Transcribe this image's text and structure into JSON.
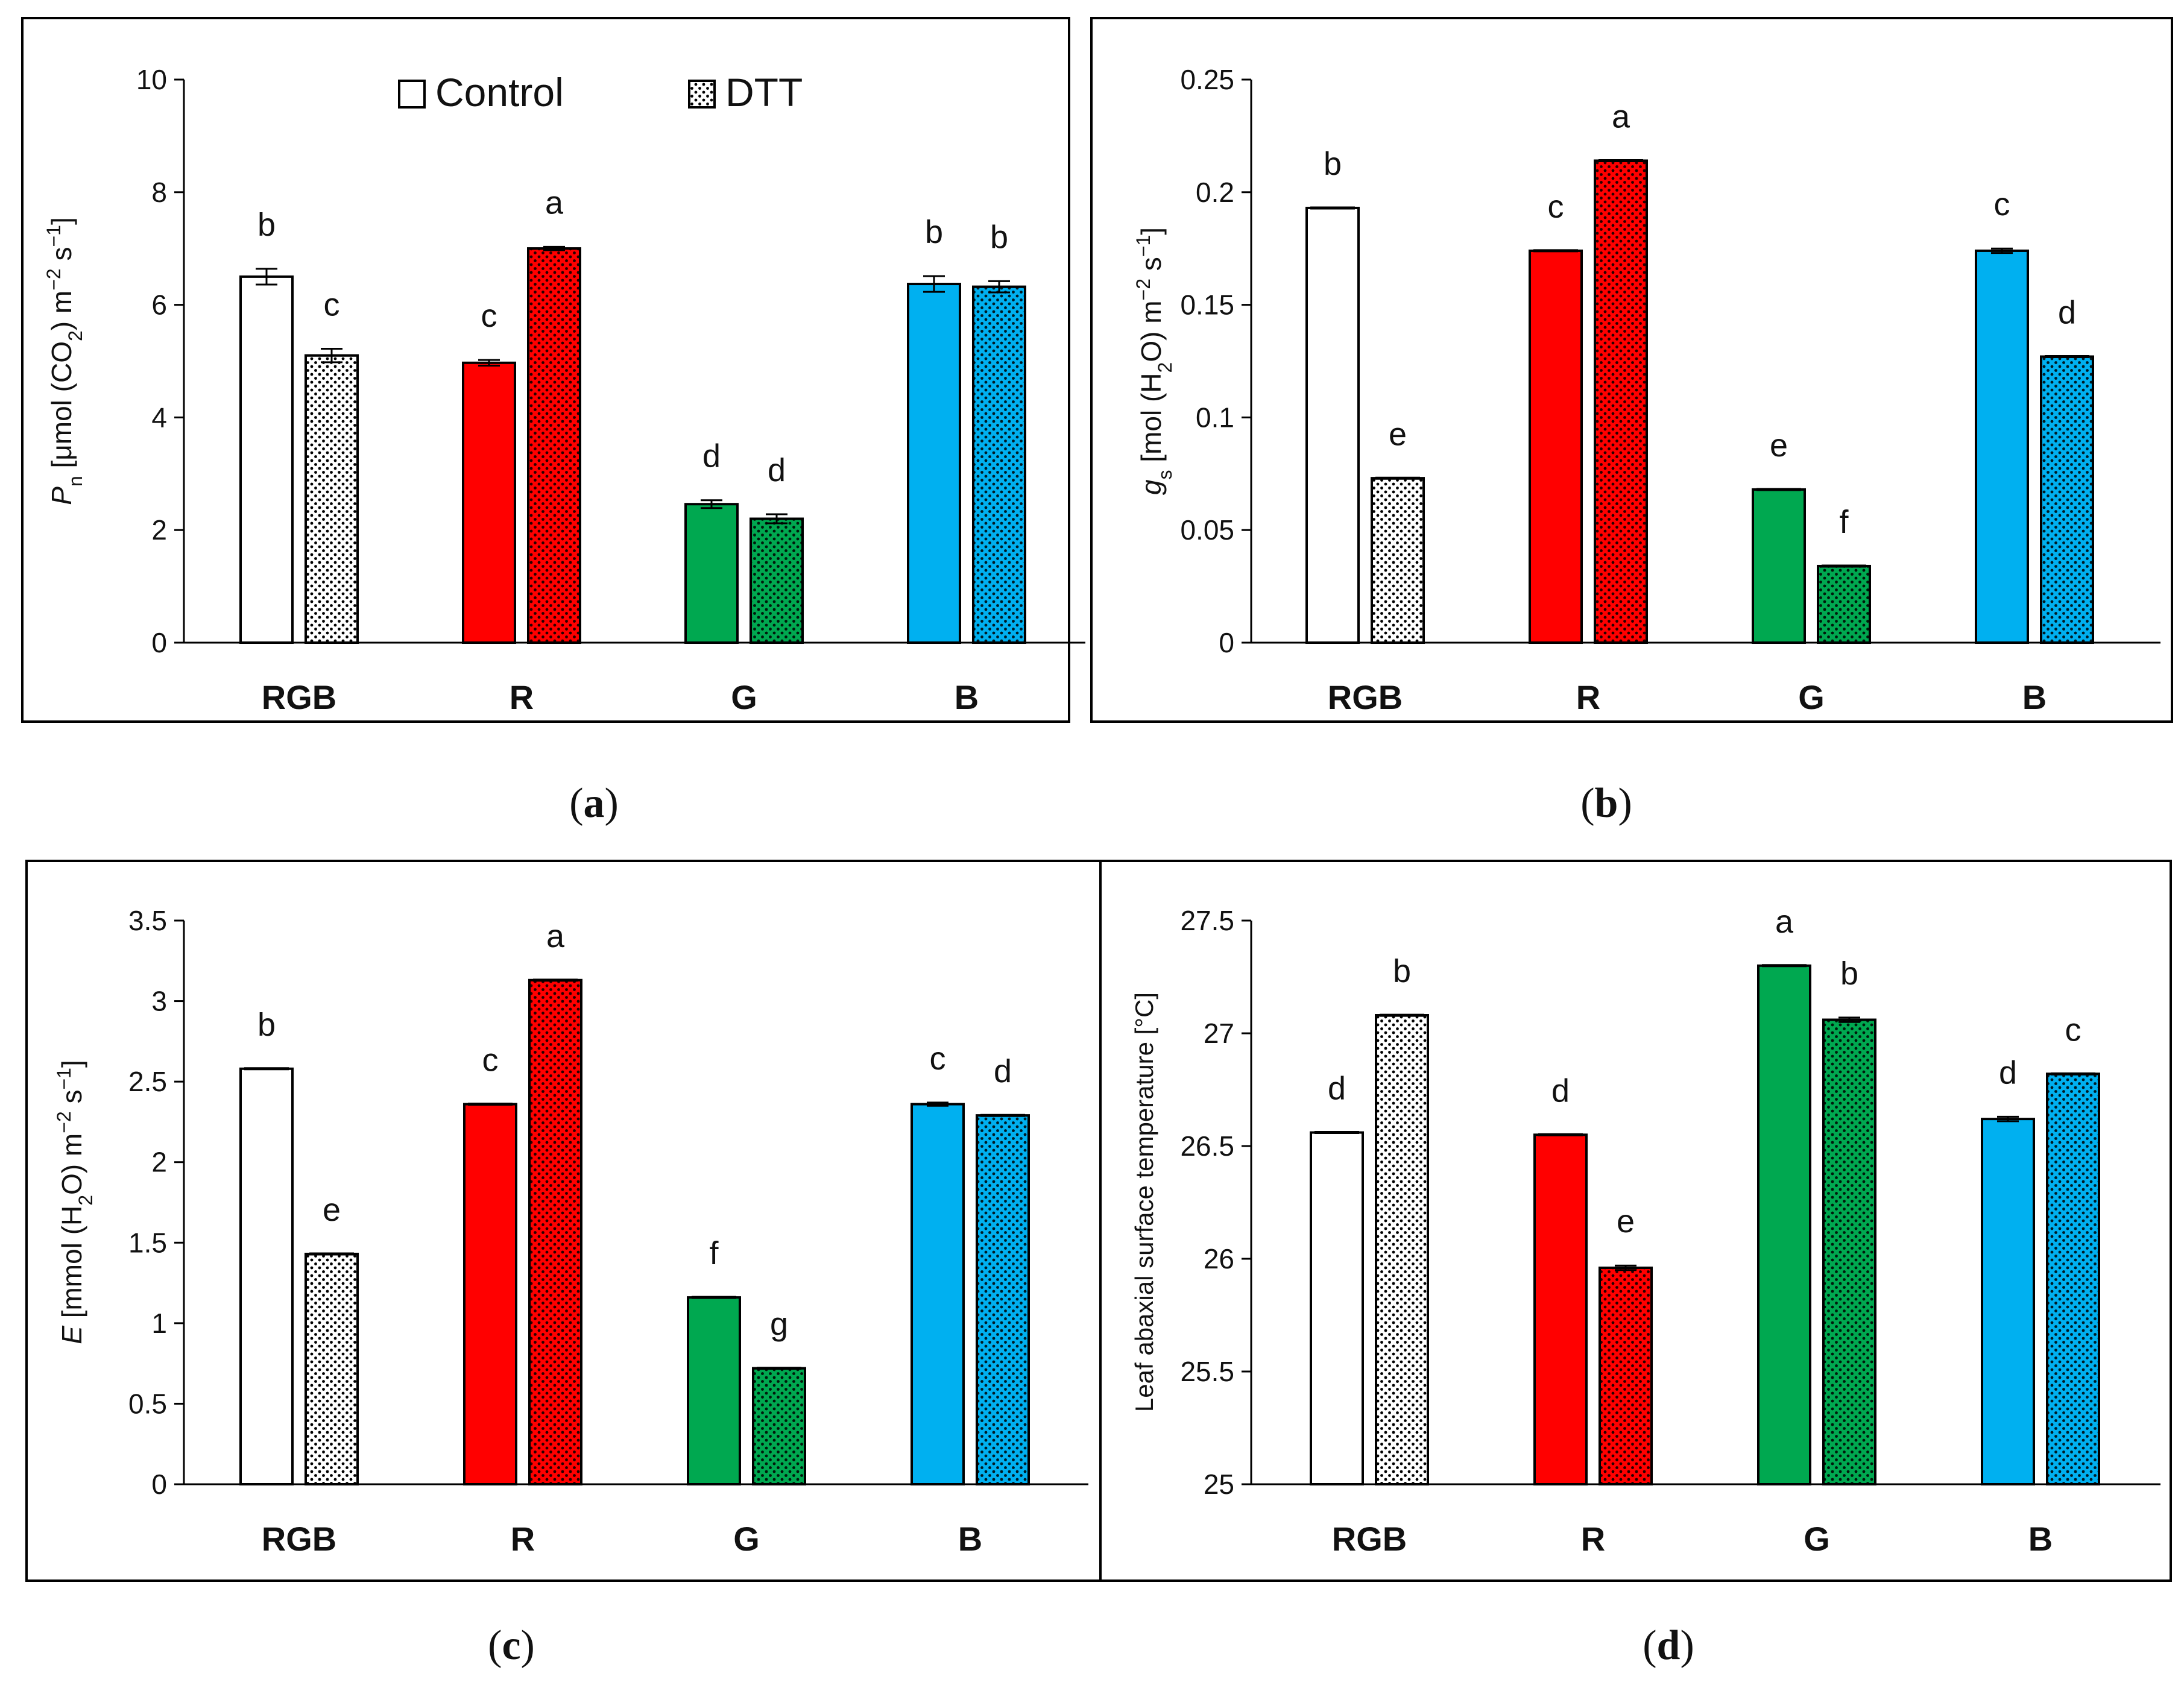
{
  "series_names": [
    "Control",
    "DTT"
  ],
  "categories": [
    "RGB",
    "R",
    "G",
    "B"
  ],
  "colors": {
    "RGB": "#ffffff",
    "R": "#ff0000",
    "G": "#00a850",
    "B": "#00b0f0",
    "axis": "#000000",
    "frame": "#000000"
  },
  "legend": {
    "control_label": "Control",
    "dtt_label": "DTT"
  },
  "chart_data": [
    {
      "id": "a",
      "type": "bar",
      "caption": "a",
      "ylabel_parts": [
        "P",
        "n",
        " [μmol (CO",
        "2",
        ") m",
        "−2",
        " s",
        "−1",
        "]"
      ],
      "ylim": [
        0,
        10
      ],
      "yticks": [
        "0",
        "2",
        "4",
        "6",
        "8",
        "10"
      ],
      "tick_values": [
        0,
        2,
        4,
        6,
        8,
        10
      ],
      "categories": [
        "RGB",
        "R",
        "G",
        "B"
      ],
      "series": [
        {
          "name": "Control",
          "values": [
            6.5,
            4.97,
            2.46,
            6.37
          ],
          "errors": [
            0.14,
            0.05,
            0.07,
            0.14
          ],
          "letters": [
            "b",
            "c",
            "d",
            "b"
          ]
        },
        {
          "name": "DTT",
          "values": [
            5.1,
            7.0,
            2.2,
            6.32
          ],
          "errors": [
            0.12,
            0.03,
            0.08,
            0.1
          ],
          "letters": [
            "c",
            "a",
            "d",
            "b"
          ]
        }
      ]
    },
    {
      "id": "b",
      "type": "bar",
      "caption": "b",
      "ylabel_parts": [
        "g",
        "s",
        " [mol (H",
        "2",
        "O) m",
        "−2",
        " s",
        "−1",
        "]"
      ],
      "ylim": [
        0,
        0.25
      ],
      "yticks": [
        "0",
        "0.05",
        "0.1",
        "0.15",
        "0.2",
        "0.25"
      ],
      "tick_values": [
        0,
        0.05,
        0.1,
        0.15,
        0.2,
        0.25
      ],
      "categories": [
        "RGB",
        "R",
        "G",
        "B"
      ],
      "series": [
        {
          "name": "Control",
          "values": [
            0.193,
            0.174,
            0.068,
            0.174
          ],
          "errors": [
            0,
            0,
            0,
            0.001
          ],
          "letters": [
            "b",
            "c",
            "e",
            "c"
          ]
        },
        {
          "name": "DTT",
          "values": [
            0.073,
            0.214,
            0.034,
            0.127
          ],
          "errors": [
            0,
            0,
            0,
            0
          ],
          "letters": [
            "e",
            "a",
            "f",
            "d"
          ]
        }
      ]
    },
    {
      "id": "c",
      "type": "bar",
      "caption": "c",
      "ylabel_parts": [
        "E",
        "",
        " [mmol (H",
        "2",
        "O) m",
        "−2",
        " s",
        "−1",
        "]"
      ],
      "ylim": [
        0,
        3.5
      ],
      "yticks": [
        "0",
        "0.5",
        "1",
        "1.5",
        "2",
        "2.5",
        "3",
        "3.5"
      ],
      "tick_values": [
        0,
        0.5,
        1,
        1.5,
        2,
        2.5,
        3,
        3.5
      ],
      "categories": [
        "RGB",
        "R",
        "G",
        "B"
      ],
      "series": [
        {
          "name": "Control",
          "values": [
            2.58,
            2.36,
            1.16,
            2.36
          ],
          "errors": [
            0,
            0,
            0,
            0.01
          ],
          "letters": [
            "b",
            "c",
            "f",
            "c"
          ]
        },
        {
          "name": "DTT",
          "values": [
            1.43,
            3.13,
            0.72,
            2.29
          ],
          "errors": [
            0,
            0,
            0,
            0
          ],
          "letters": [
            "e",
            "a",
            "g",
            "d"
          ]
        }
      ]
    },
    {
      "id": "d",
      "type": "bar",
      "caption": "d",
      "ylabel_parts": [
        "Leaf abaxial surface temperature [°C]"
      ],
      "ylim": [
        25,
        27.5
      ],
      "yticks": [
        "25",
        "25.5",
        "26",
        "26.5",
        "27",
        "27.5"
      ],
      "tick_values": [
        25,
        25.5,
        26,
        26.5,
        27,
        27.5
      ],
      "categories": [
        "RGB",
        "R",
        "G",
        "B"
      ],
      "series": [
        {
          "name": "Control",
          "values": [
            26.56,
            26.55,
            27.3,
            26.62
          ],
          "errors": [
            0,
            0,
            0,
            0.01
          ],
          "letters": [
            "d",
            "d",
            "a",
            "d"
          ]
        },
        {
          "name": "DTT",
          "values": [
            27.08,
            25.96,
            27.06,
            26.82
          ],
          "errors": [
            0,
            0.01,
            0.01,
            0
          ],
          "letters": [
            "b",
            "e",
            "b",
            "c"
          ]
        }
      ]
    }
  ]
}
